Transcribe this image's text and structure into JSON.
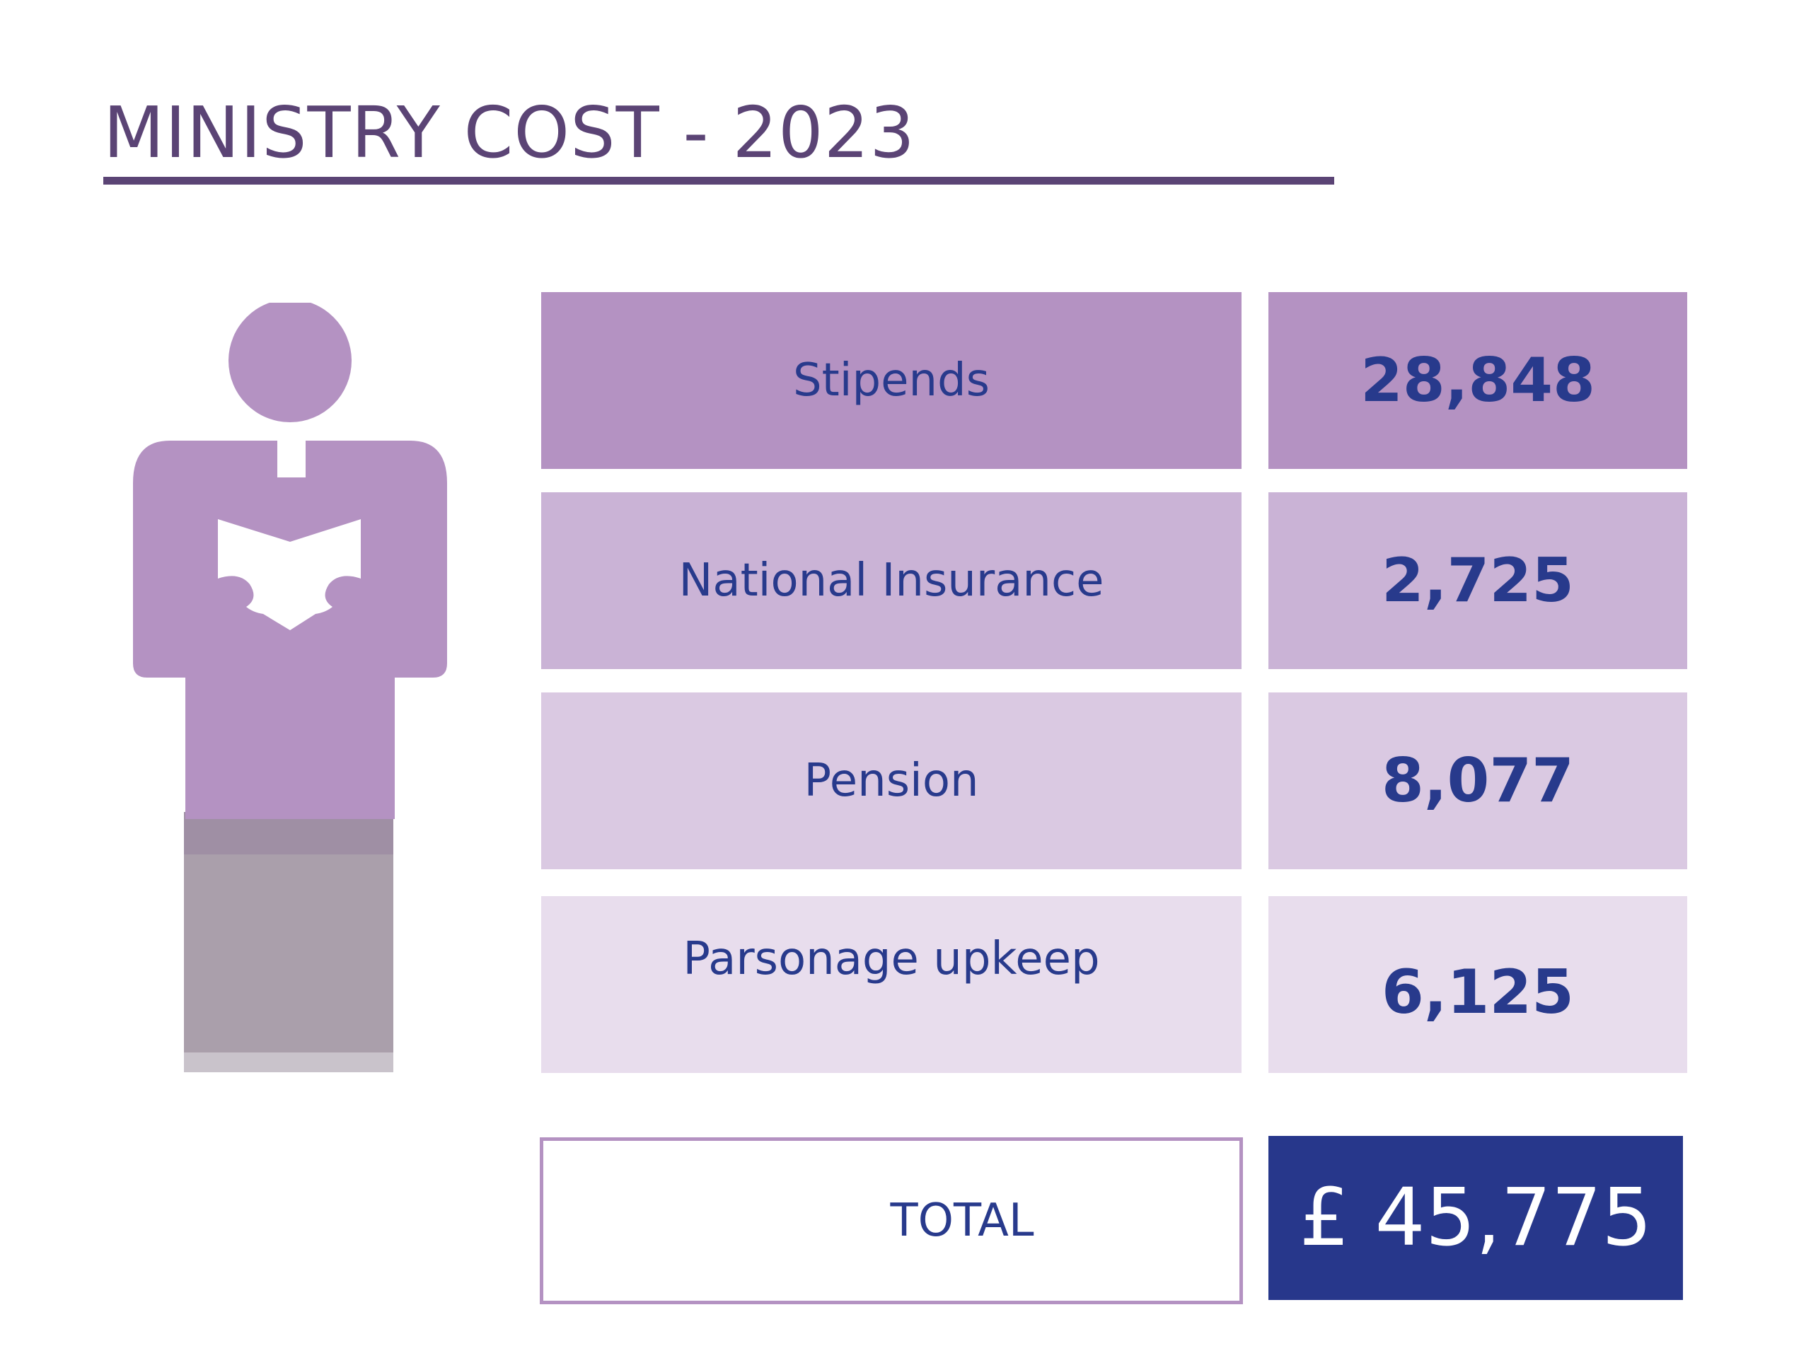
{
  "title": "MINISTRY COST - 2023",
  "figure_icon": "clergy-person-reading-book-icon",
  "colors": {
    "title": "#5b4475",
    "text": "#283a8c",
    "row_1": "#b492c2",
    "row_2": "#cab3d6",
    "row_3": "#dac9e2",
    "row_4": "#e8dded",
    "total_background": "#27378b"
  },
  "rows": [
    {
      "label": "Stipends",
      "value": "28,848"
    },
    {
      "label": "National Insurance",
      "value": "2,725"
    },
    {
      "label": "Pension",
      "value": "8,077"
    },
    {
      "label": "Parsonage upkeep",
      "value": "6,125"
    }
  ],
  "total": {
    "label": "TOTAL",
    "value": "£ 45,775"
  }
}
